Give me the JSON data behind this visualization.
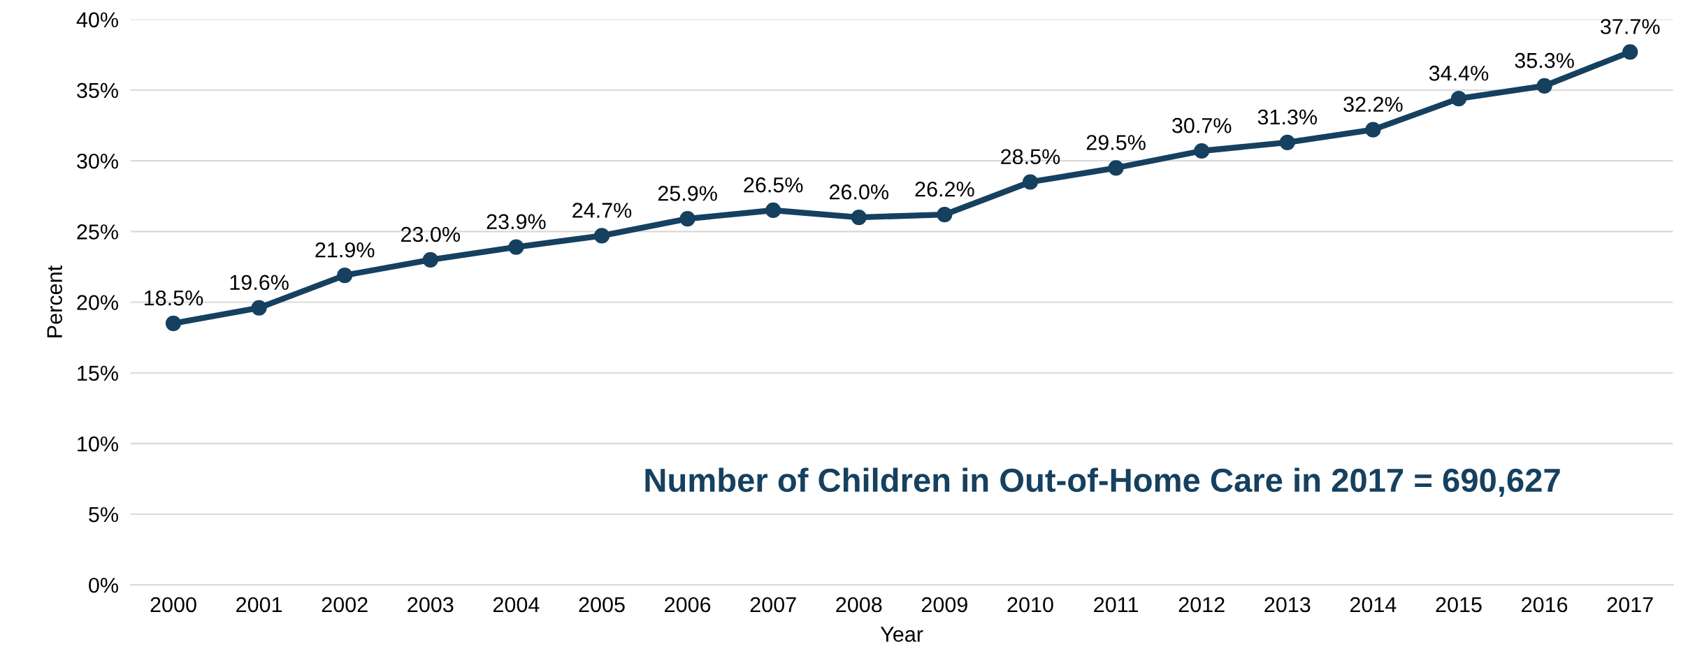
{
  "chart_data": {
    "type": "line",
    "xlabel": "Year",
    "ylabel": "Percent",
    "categories": [
      "2000",
      "2001",
      "2002",
      "2003",
      "2004",
      "2005",
      "2006",
      "2007",
      "2008",
      "2009",
      "2010",
      "2011",
      "2012",
      "2013",
      "2014",
      "2015",
      "2016",
      "2017"
    ],
    "series": [
      {
        "color": "#16405f",
        "values": [
          18.5,
          19.6,
          21.9,
          23.0,
          23.9,
          24.7,
          25.9,
          26.5,
          26.0,
          26.2,
          28.5,
          29.5,
          30.7,
          31.3,
          32.2,
          34.4,
          35.3,
          37.7
        ],
        "value_labels": [
          "18.5%",
          "19.6%",
          "21.9%",
          "23.0%",
          "23.9%",
          "24.7%",
          "25.9%",
          "26.5%",
          "26.0%",
          "26.2%",
          "28.5%",
          "29.5%",
          "30.7%",
          "31.3%",
          "32.2%",
          "34.4%",
          "35.3%",
          "37.7%"
        ]
      }
    ],
    "ylim": [
      0,
      40
    ],
    "yticks": [
      {
        "value": 0,
        "label": "0%"
      },
      {
        "value": 5,
        "label": "5%"
      },
      {
        "value": 10,
        "label": "10%"
      },
      {
        "value": 15,
        "label": "15%"
      },
      {
        "value": 20,
        "label": "20%"
      },
      {
        "value": 25,
        "label": "25%"
      },
      {
        "value": 30,
        "label": "30%"
      },
      {
        "value": 35,
        "label": "35%"
      },
      {
        "value": 40,
        "label": "40%"
      }
    ],
    "grid": "y",
    "marker": "circle",
    "line_style": "solid",
    "annotations": [
      "Number of Children in Out-of-Home Care in 2017 = 690,627"
    ]
  }
}
